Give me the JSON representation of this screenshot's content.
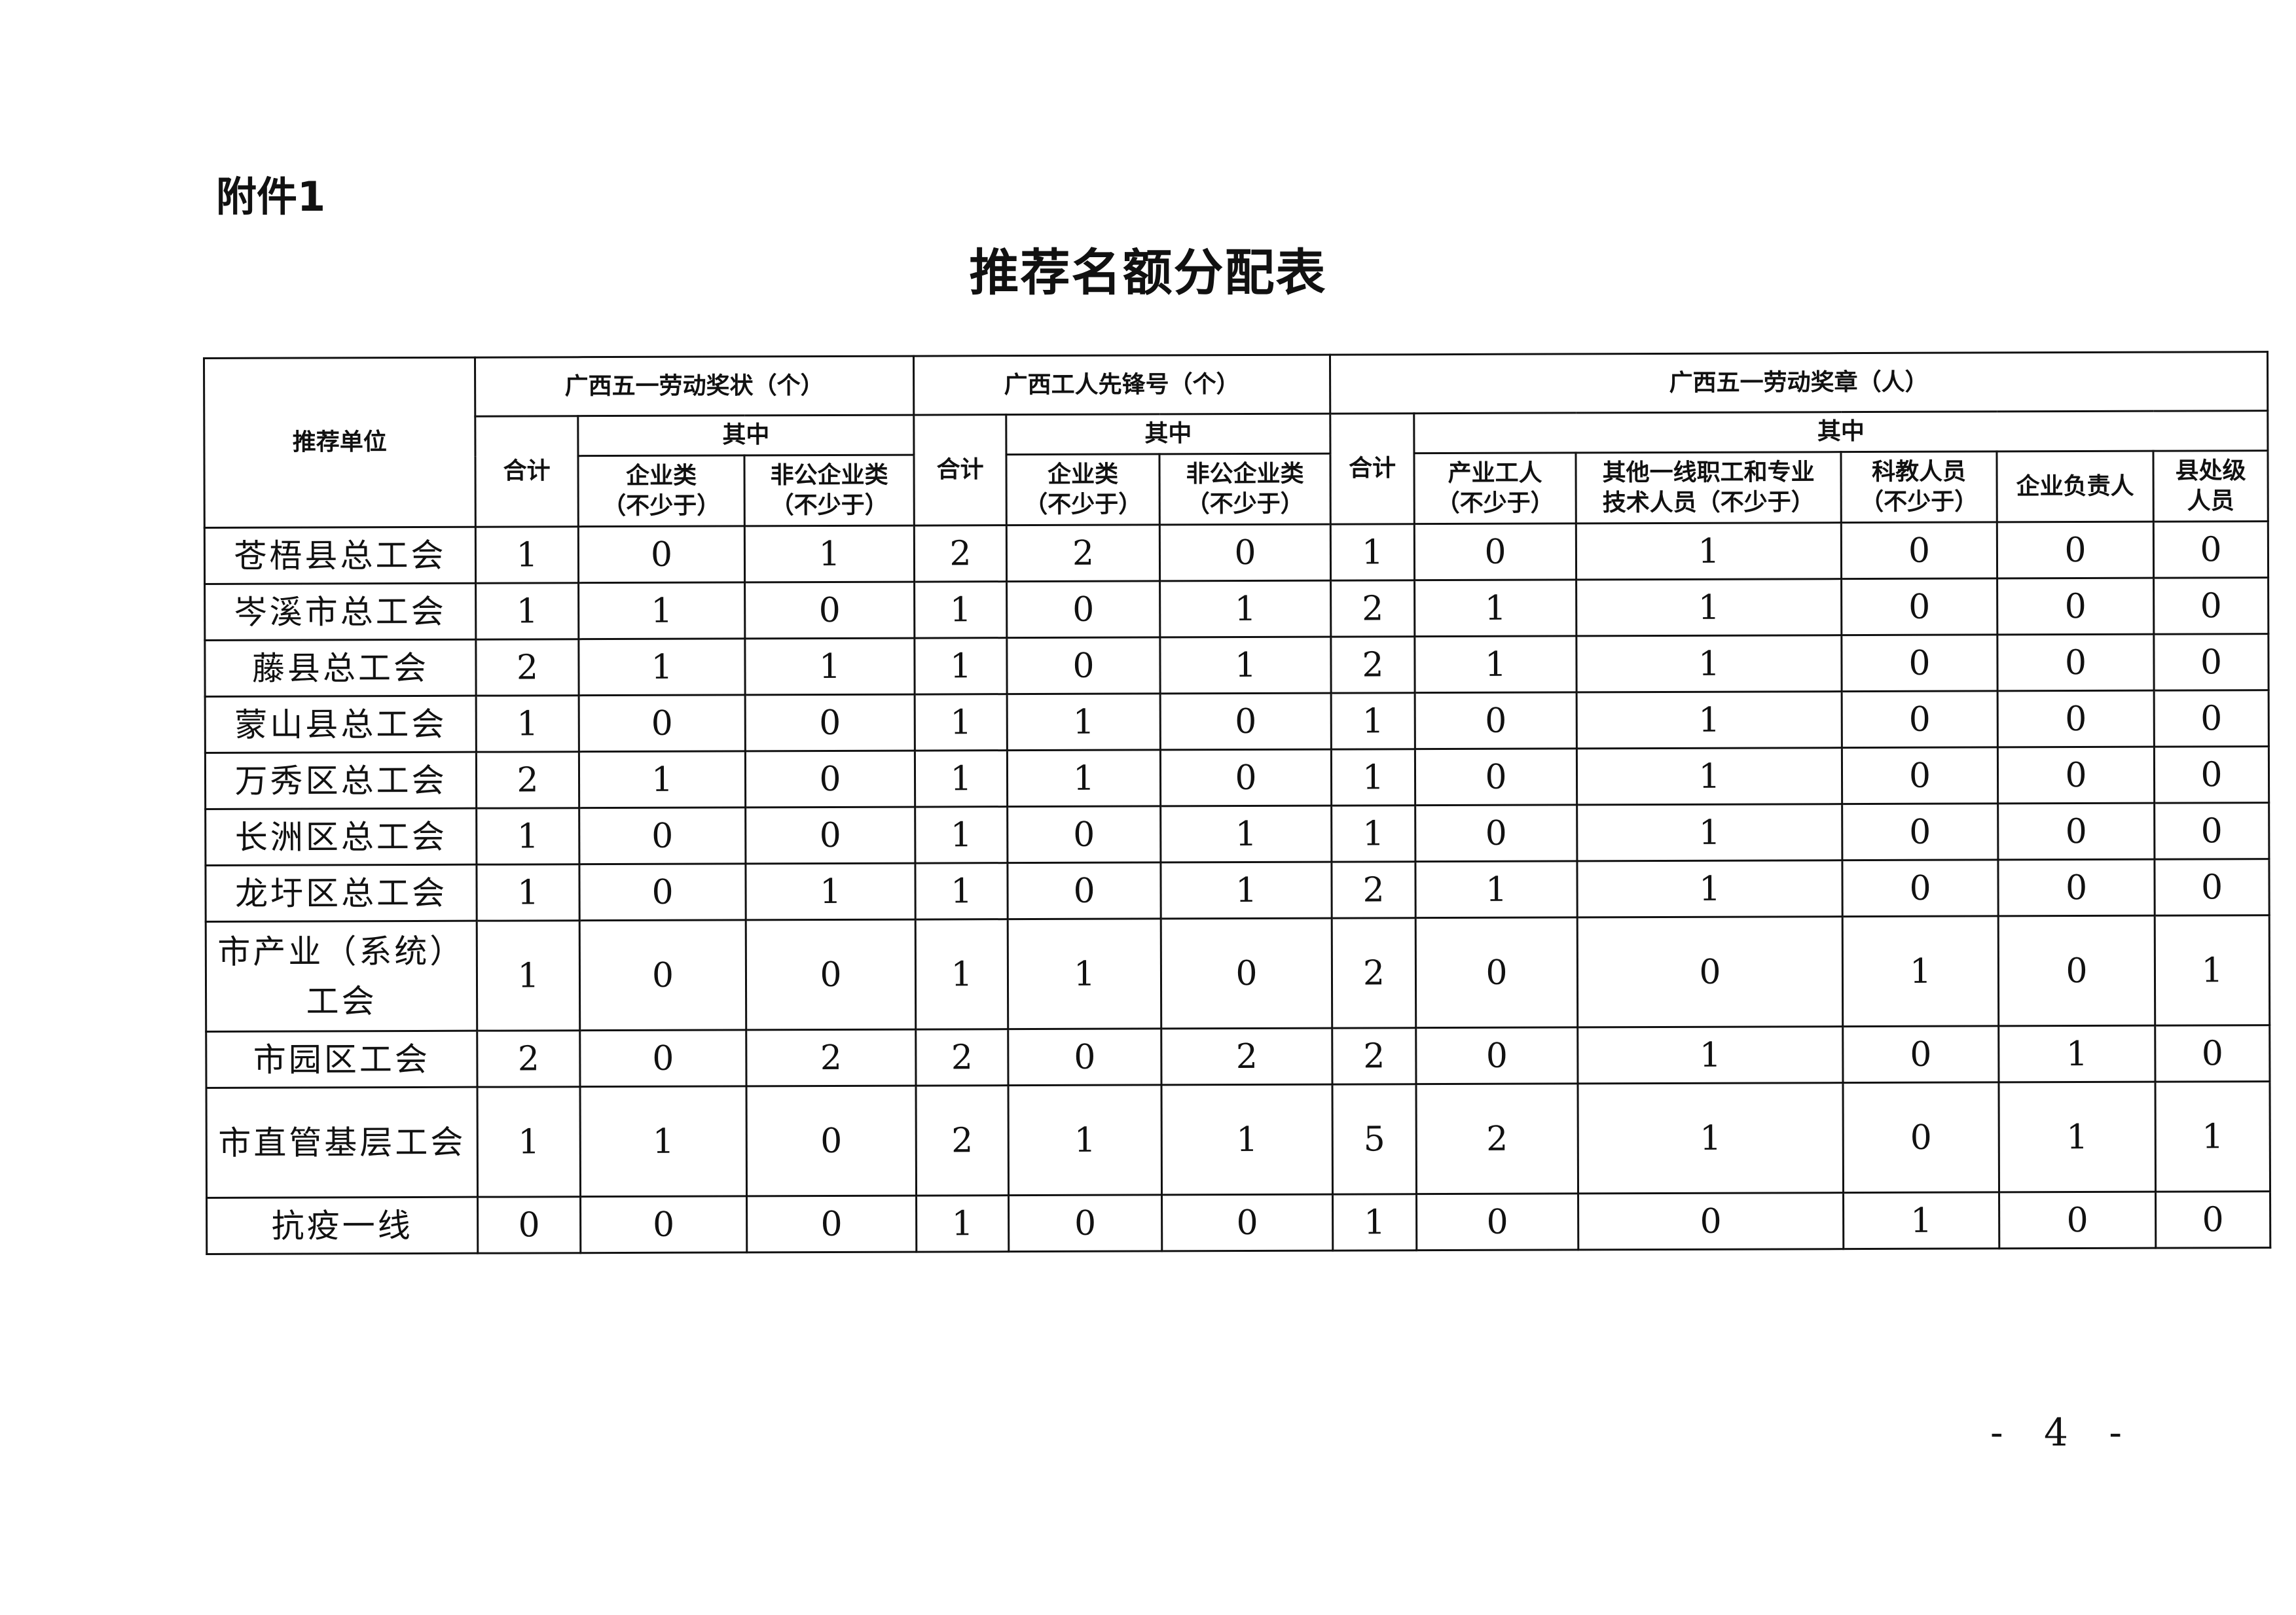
{
  "attachment_label": "附件1",
  "title": "推荐名额分配表",
  "page_number": "- 4 -",
  "header": {
    "unit": "推荐单位",
    "group1": "广西五一劳动奖状（个）",
    "group2": "广西工人先锋号（个）",
    "group3": "广西五一劳动奖章（人）",
    "total": "合计",
    "among": "其中",
    "g1_cols": [
      "企业类\n（不少于）",
      "非公企业类\n（不少于）"
    ],
    "g2_cols": [
      "企业类\n（不少于）",
      "非公企业类\n（不少于）"
    ],
    "g3_cols": [
      "产业工人\n（不少于）",
      "其他一线职工和专业\n技术人员（不少于）",
      "科教人员\n（不少于）",
      "企业负责人",
      "县处级\n人员"
    ]
  },
  "rows": [
    {
      "unit": "苍梧县总工会",
      "values": [
        1,
        0,
        1,
        2,
        2,
        0,
        1,
        0,
        1,
        0,
        0,
        0
      ]
    },
    {
      "unit": "岑溪市总工会",
      "values": [
        1,
        1,
        0,
        1,
        0,
        1,
        2,
        1,
        1,
        0,
        0,
        0
      ]
    },
    {
      "unit": "藤县总工会",
      "values": [
        2,
        1,
        1,
        1,
        0,
        1,
        2,
        1,
        1,
        0,
        0,
        0
      ]
    },
    {
      "unit": "蒙山县总工会",
      "values": [
        1,
        0,
        0,
        1,
        1,
        0,
        1,
        0,
        1,
        0,
        0,
        0
      ]
    },
    {
      "unit": "万秀区总工会",
      "values": [
        2,
        1,
        0,
        1,
        1,
        0,
        1,
        0,
        1,
        0,
        0,
        0
      ]
    },
    {
      "unit": "长洲区总工会",
      "values": [
        1,
        0,
        0,
        1,
        0,
        1,
        1,
        0,
        1,
        0,
        0,
        0
      ]
    },
    {
      "unit": "龙圩区总工会",
      "values": [
        1,
        0,
        1,
        1,
        0,
        1,
        2,
        1,
        1,
        0,
        0,
        0
      ]
    },
    {
      "unit": "市产业（系统）工会",
      "values": [
        1,
        0,
        0,
        1,
        1,
        0,
        2,
        0,
        0,
        1,
        0,
        1
      ]
    },
    {
      "unit": "市园区工会",
      "values": [
        2,
        0,
        2,
        2,
        0,
        2,
        2,
        0,
        1,
        0,
        1,
        0
      ]
    },
    {
      "unit": "市直管基层工会",
      "values": [
        1,
        1,
        0,
        2,
        1,
        1,
        5,
        2,
        1,
        0,
        1,
        1
      ]
    },
    {
      "unit": "抗疫一线",
      "values": [
        0,
        0,
        0,
        1,
        0,
        0,
        1,
        0,
        0,
        1,
        0,
        0
      ]
    }
  ]
}
